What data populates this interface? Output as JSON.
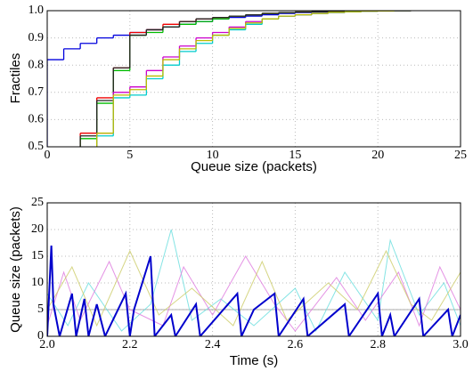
{
  "chart_data": [
    {
      "type": "step",
      "xlabel": "Queue size (packets)",
      "ylabel": "Fractiles",
      "x": [
        0,
        1,
        2,
        3,
        4,
        5,
        6,
        7,
        8,
        9,
        10,
        11,
        12,
        13,
        14,
        15,
        16,
        17,
        18,
        19,
        20,
        21,
        22
      ],
      "xlim": [
        0,
        25
      ],
      "xticks": [
        0,
        5,
        10,
        15,
        20,
        25
      ],
      "ylim": [
        0.5,
        1
      ],
      "yticks": [
        0.5,
        0.6,
        0.7,
        0.8,
        0.9,
        {
          "value": 1,
          "label": "1.0"
        }
      ],
      "grid": true,
      "series": [
        {
          "color": "#0000dd",
          "values": [
            0.82,
            0.86,
            0.88,
            0.9,
            0.91,
            0.92,
            0.93,
            0.94,
            0.95,
            0.96,
            0.97,
            0.975,
            0.98,
            0.985,
            0.99,
            0.993,
            0.995,
            0.997,
            0.998,
            0.999,
            0.999,
            1,
            1
          ]
        },
        {
          "color": "#ee0000",
          "values": [
            null,
            null,
            0.55,
            0.68,
            0.79,
            0.92,
            0.93,
            0.95,
            0.96,
            0.97,
            0.975,
            0.98,
            0.985,
            0.99,
            0.993,
            0.995,
            0.997,
            0.998,
            0.999,
            1,
            1,
            1,
            1
          ]
        },
        {
          "color": "#00bb00",
          "values": [
            null,
            null,
            0.53,
            0.66,
            0.78,
            0.91,
            0.92,
            0.94,
            0.95,
            0.96,
            0.97,
            0.98,
            0.985,
            0.99,
            0.993,
            0.995,
            0.997,
            0.998,
            0.999,
            1,
            1,
            1,
            1
          ]
        },
        {
          "color": "#222222",
          "values": [
            null,
            null,
            0.54,
            0.67,
            0.79,
            0.91,
            0.93,
            0.94,
            0.96,
            0.97,
            0.975,
            0.98,
            0.985,
            0.99,
            0.993,
            0.995,
            0.997,
            0.998,
            0.999,
            1,
            1,
            1,
            1
          ]
        },
        {
          "color": "#cc00cc",
          "values": [
            null,
            null,
            null,
            0.55,
            0.7,
            0.72,
            0.78,
            0.83,
            0.87,
            0.9,
            0.92,
            0.94,
            0.96,
            0.97,
            0.98,
            0.985,
            0.99,
            0.993,
            0.996,
            0.998,
            0.999,
            1,
            1
          ]
        },
        {
          "color": "#00cccc",
          "values": [
            null,
            null,
            null,
            0.54,
            0.68,
            0.69,
            0.75,
            0.8,
            0.85,
            0.88,
            0.91,
            0.93,
            0.95,
            0.97,
            0.98,
            0.985,
            0.99,
            0.993,
            0.996,
            0.998,
            0.999,
            1,
            1
          ]
        },
        {
          "color": "#bbbb00",
          "values": [
            null,
            null,
            null,
            0.55,
            0.69,
            0.71,
            0.76,
            0.82,
            0.86,
            0.89,
            0.91,
            0.935,
            0.955,
            0.97,
            0.98,
            0.985,
            0.99,
            0.994,
            0.996,
            0.998,
            0.999,
            1,
            1
          ]
        }
      ]
    },
    {
      "type": "line",
      "xlabel": "Time (s)",
      "ylabel": "Queue size (packets)",
      "xlim": [
        2,
        3
      ],
      "xticks": [
        {
          "value": 2,
          "label": "2.0"
        },
        2.2,
        2.4,
        2.6,
        2.8,
        {
          "value": 3,
          "label": "3.0"
        }
      ],
      "ylim": [
        0,
        25
      ],
      "yticks": [
        0,
        5,
        10,
        15,
        20,
        25
      ],
      "grid": true,
      "series": [
        {
          "color": "#999999",
          "x": [
            2.0,
            3.0
          ],
          "values": [
            5,
            5
          ]
        },
        {
          "color": "#66dddd",
          "x": [
            2.0,
            2.05,
            2.1,
            2.18,
            2.25,
            2.3,
            2.35,
            2.42,
            2.5,
            2.6,
            2.65,
            2.72,
            2.8,
            2.83,
            2.9,
            2.96,
            3.0
          ],
          "values": [
            8,
            2,
            10,
            1,
            6,
            20,
            3,
            7,
            2,
            9,
            1,
            12,
            3,
            18,
            4,
            10,
            2
          ]
        },
        {
          "color": "#dd77dd",
          "x": [
            2.0,
            2.04,
            2.08,
            2.15,
            2.2,
            2.28,
            2.33,
            2.4,
            2.48,
            2.55,
            2.6,
            2.7,
            2.77,
            2.85,
            2.9,
            2.95,
            3.0
          ],
          "values": [
            2,
            12,
            3,
            14,
            5,
            2,
            13,
            4,
            15,
            6,
            1,
            11,
            3,
            12,
            2,
            13,
            5
          ]
        },
        {
          "color": "#cccc66",
          "x": [
            2.0,
            2.06,
            2.12,
            2.2,
            2.27,
            2.35,
            2.45,
            2.52,
            2.58,
            2.68,
            2.75,
            2.82,
            2.88,
            2.93,
            3.0
          ],
          "values": [
            5,
            13,
            2,
            16,
            4,
            9,
            2,
            14,
            3,
            10,
            5,
            16,
            6,
            3,
            12
          ]
        },
        {
          "color": "#0000cc",
          "x": [
            2.0,
            2.01,
            2.015,
            2.03,
            2.06,
            2.07,
            2.09,
            2.1,
            2.12,
            2.14,
            2.19,
            2.2,
            2.21,
            2.25,
            2.26,
            2.3,
            2.31,
            2.36,
            2.37,
            2.46,
            2.47,
            2.5,
            2.55,
            2.56,
            2.62,
            2.63,
            2.72,
            2.73,
            2.8,
            2.81,
            2.83,
            2.84,
            2.9,
            2.91,
            2.97,
            2.98,
            3.0
          ],
          "values": [
            0,
            17,
            6,
            0,
            8,
            0,
            7,
            0,
            6,
            0,
            8,
            0,
            5,
            15,
            0,
            4,
            0,
            6,
            0,
            8,
            0,
            5,
            8,
            0,
            7,
            0,
            6,
            0,
            8,
            0,
            4,
            0,
            7,
            0,
            5,
            0,
            4
          ],
          "width": 2
        }
      ]
    }
  ]
}
